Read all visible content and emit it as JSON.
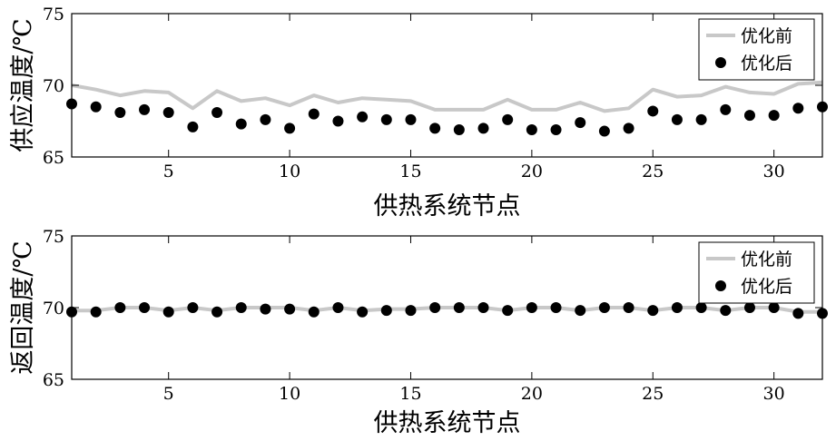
{
  "colors": {
    "line": "#c8c8c8",
    "dot": "#000000",
    "axis": "#000000",
    "background": "#ffffff"
  },
  "chart_data": [
    {
      "type": "line",
      "xlabel": "供热系统节点",
      "ylabel": "供应温度/℃",
      "xlim": [
        1,
        32
      ],
      "ylim": [
        65,
        75
      ],
      "xticks": [
        5,
        10,
        15,
        20,
        25,
        30
      ],
      "yticks": [
        65,
        70,
        75
      ],
      "grid": false,
      "legend": "top-right",
      "x": [
        1,
        2,
        3,
        4,
        5,
        6,
        7,
        8,
        9,
        10,
        11,
        12,
        13,
        14,
        15,
        16,
        17,
        18,
        19,
        20,
        21,
        22,
        23,
        24,
        25,
        26,
        27,
        28,
        29,
        30,
        31,
        32
      ],
      "series": [
        {
          "name": "优化前",
          "style": "line",
          "values": [
            70.0,
            69.7,
            69.3,
            69.6,
            69.5,
            68.4,
            69.6,
            68.9,
            69.1,
            68.6,
            69.3,
            68.8,
            69.1,
            69.0,
            68.9,
            68.3,
            68.3,
            68.3,
            69.0,
            68.3,
            68.3,
            68.8,
            68.2,
            68.4,
            69.7,
            69.2,
            69.3,
            69.9,
            69.5,
            69.4,
            70.1,
            70.2
          ]
        },
        {
          "name": "优化后",
          "style": "marker",
          "values": [
            68.7,
            68.5,
            68.1,
            68.3,
            68.1,
            67.1,
            68.1,
            67.3,
            67.6,
            67.0,
            68.0,
            67.5,
            67.8,
            67.6,
            67.6,
            67.0,
            66.9,
            67.0,
            67.6,
            66.9,
            66.9,
            67.4,
            66.8,
            67.0,
            68.2,
            67.6,
            67.6,
            68.3,
            67.9,
            67.9,
            68.4,
            68.5
          ]
        }
      ]
    },
    {
      "type": "line",
      "xlabel": "供热系统节点",
      "ylabel": "返回温度/℃",
      "xlim": [
        1,
        32
      ],
      "ylim": [
        65,
        75
      ],
      "xticks": [
        5,
        10,
        15,
        20,
        25,
        30
      ],
      "yticks": [
        65,
        70,
        75
      ],
      "grid": false,
      "legend": "top-right",
      "x": [
        1,
        2,
        3,
        4,
        5,
        6,
        7,
        8,
        9,
        10,
        11,
        12,
        13,
        14,
        15,
        16,
        17,
        18,
        19,
        20,
        21,
        22,
        23,
        24,
        25,
        26,
        27,
        28,
        29,
        30,
        31,
        32
      ],
      "series": [
        {
          "name": "优化前",
          "style": "line",
          "values": [
            69.8,
            69.8,
            70.0,
            70.0,
            69.8,
            70.0,
            69.8,
            70.0,
            70.0,
            70.0,
            69.8,
            70.0,
            69.8,
            69.9,
            69.9,
            70.0,
            70.0,
            70.0,
            69.8,
            70.0,
            70.0,
            69.8,
            70.0,
            70.0,
            69.8,
            70.0,
            70.0,
            69.8,
            70.0,
            70.0,
            69.7,
            69.7
          ]
        },
        {
          "name": "优化后",
          "style": "marker",
          "values": [
            69.7,
            69.7,
            70.0,
            70.0,
            69.7,
            70.0,
            69.7,
            70.0,
            69.9,
            69.9,
            69.7,
            70.0,
            69.7,
            69.8,
            69.8,
            70.0,
            70.0,
            70.0,
            69.8,
            70.0,
            70.0,
            69.8,
            70.0,
            70.0,
            69.8,
            70.0,
            70.0,
            69.8,
            70.0,
            70.0,
            69.6,
            69.6
          ]
        }
      ]
    }
  ]
}
